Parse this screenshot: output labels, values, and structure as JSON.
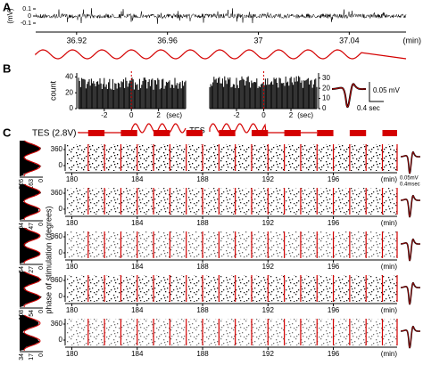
{
  "panel_a": {
    "label": "A",
    "ylabel": "(mV)",
    "ylim": [
      -0.15,
      0.15
    ],
    "yticks": [
      0.1,
      0,
      -0.1
    ],
    "xlim": [
      36.902,
      37.065
    ],
    "xticks": [
      36.92,
      36.96,
      37,
      37.04
    ],
    "xlabel": "(min)"
  },
  "panel_b": {
    "label": "B",
    "ylabel": "count",
    "stim_label": "TES",
    "hist_left": {
      "ylim": [
        0,
        45
      ],
      "yticks": [
        0,
        20,
        40
      ],
      "xlim": [
        -3.9,
        4
      ],
      "xticks": [
        -2,
        0,
        2
      ],
      "xlabel": "(sec)"
    },
    "hist_right": {
      "ylim": [
        0,
        35
      ],
      "yticks": [
        0,
        10,
        20,
        30
      ],
      "xlim": [
        -3.97,
        3.9
      ],
      "xticks": [
        -2,
        0,
        2
      ],
      "xlabel": "(sec)"
    },
    "scale_v": "0.05 mV",
    "scale_t": "0.4 sec"
  },
  "panel_c": {
    "label": "C",
    "stim_label": "TES (2.8V)",
    "ylabel": "phase of stimulation (degrees)",
    "xlim": [
      179.7,
      199.9
    ],
    "xticks": [
      180,
      184,
      188,
      192,
      196
    ],
    "xlabel": "(min)",
    "yticks": [
      360,
      0
    ],
    "stim_blocks": [
      [
        181,
        182
      ],
      [
        183,
        184
      ],
      [
        185,
        186
      ],
      [
        187,
        188
      ],
      [
        189,
        190
      ],
      [
        191,
        192
      ],
      [
        193,
        194
      ],
      [
        195,
        196
      ],
      [
        197,
        198
      ],
      [
        199,
        199.9
      ]
    ],
    "stim_color": "#d40000",
    "scale_v": "0.05mV",
    "scale_t": "0.4msec",
    "rows": [
      {
        "hist_ticks": [
          326,
          163,
          0
        ]
      },
      {
        "hist_ticks": [
          94,
          47,
          0
        ]
      },
      {
        "hist_ticks": [
          54,
          27,
          0
        ]
      },
      {
        "hist_ticks": [
          108,
          54,
          0
        ]
      },
      {
        "hist_ticks": [
          34,
          17,
          0
        ]
      }
    ]
  }
}
